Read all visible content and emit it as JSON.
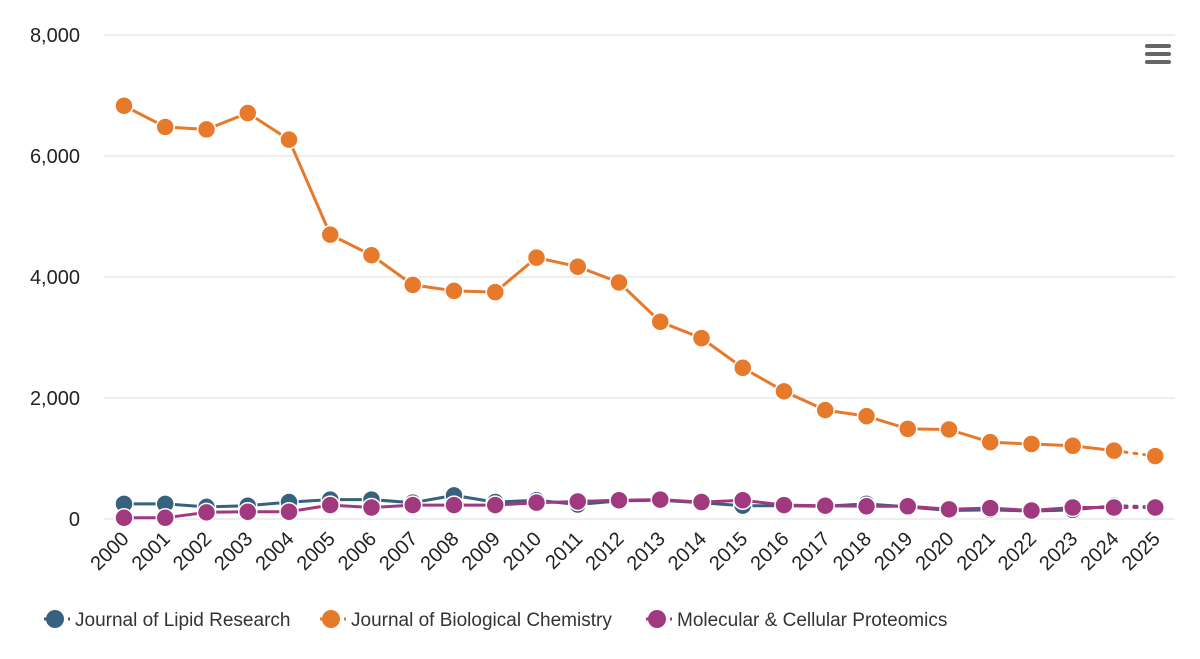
{
  "chart_data": {
    "type": "line",
    "categories": [
      "2000",
      "2001",
      "2002",
      "2003",
      "2004",
      "2005",
      "2006",
      "2007",
      "2008",
      "2009",
      "2010",
      "2011",
      "2012",
      "2013",
      "2014",
      "2015",
      "2016",
      "2017",
      "2018",
      "2019",
      "2020",
      "2021",
      "2022",
      "2023",
      "2024",
      "2025"
    ],
    "y_ticks": [
      {
        "value": 0,
        "label": "0"
      },
      {
        "value": 2000,
        "label": "2,000"
      },
      {
        "value": 4000,
        "label": "4,000"
      },
      {
        "value": 6000,
        "label": "6,000"
      },
      {
        "value": 8000,
        "label": "8,000"
      }
    ],
    "ylim": [
      0,
      8000
    ],
    "grid": true,
    "legend_position": "bottom-left",
    "dashed_last_segment": true,
    "series": [
      {
        "name": "Journal of Lipid Research",
        "color": "#36617f",
        "values": [
          250,
          250,
          200,
          220,
          280,
          320,
          320,
          270,
          390,
          280,
          310,
          240,
          300,
          310,
          270,
          220,
          220,
          210,
          250,
          200,
          140,
          150,
          130,
          150,
          220,
          200
        ]
      },
      {
        "name": "Journal of Biological Chemistry",
        "color": "#e7792b",
        "values": [
          6830,
          6480,
          6440,
          6710,
          6270,
          4700,
          4360,
          3870,
          3770,
          3750,
          4320,
          4170,
          3910,
          3260,
          2990,
          2500,
          2110,
          1800,
          1700,
          1490,
          1480,
          1270,
          1240,
          1210,
          1130,
          1040
        ]
      },
      {
        "name": "Molecular & Cellular Proteomics",
        "color": "#a0397f",
        "values": [
          20,
          20,
          110,
          120,
          120,
          230,
          190,
          230,
          230,
          230,
          270,
          290,
          310,
          320,
          280,
          310,
          230,
          220,
          210,
          210,
          160,
          180,
          140,
          190,
          190,
          190
        ]
      }
    ]
  },
  "menu": {
    "icon": "hamburger-menu-icon"
  }
}
